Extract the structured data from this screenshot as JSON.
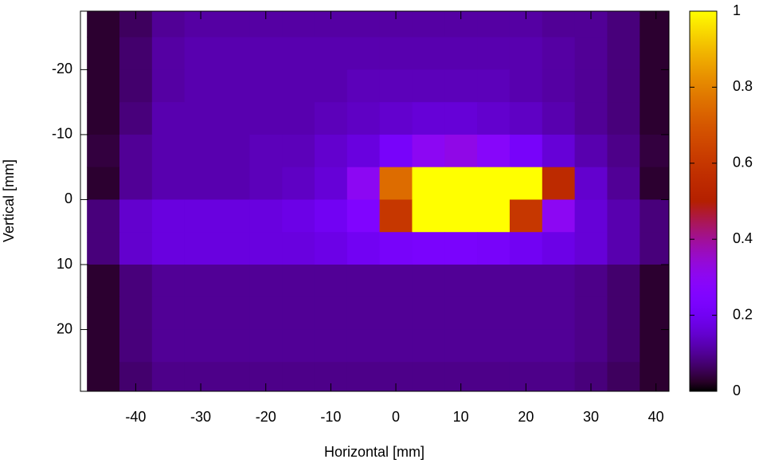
{
  "chart_data": {
    "type": "heatmap",
    "xlabel": "Horizontal [mm]",
    "ylabel": "Vertical [mm]",
    "xlim": [
      -48.5,
      42
    ],
    "xticks": [
      -40,
      -30,
      -20,
      -10,
      0,
      10,
      20,
      30,
      40
    ],
    "ylim": [
      -29,
      29.5
    ],
    "yticks": [
      -20,
      -10,
      0,
      10,
      20
    ],
    "cblim": [
      0,
      1
    ],
    "cbticks": [
      0,
      0.2,
      0.4,
      0.6,
      0.8,
      1
    ],
    "x": [
      -45,
      -40,
      -35,
      -30,
      -25,
      -20,
      -15,
      -10,
      -5,
      0,
      5,
      10,
      15,
      20,
      25,
      30,
      35,
      40
    ],
    "y": [
      -27.5,
      -22.5,
      -17.5,
      -12.5,
      -7.5,
      -2.5,
      2.5,
      7.5,
      12.5,
      17.5,
      22.5,
      27.5
    ],
    "z": [
      [
        0.03,
        0.06,
        0.1,
        0.11,
        0.11,
        0.11,
        0.11,
        0.11,
        0.11,
        0.11,
        0.11,
        0.11,
        0.11,
        0.11,
        0.1,
        0.1,
        0.08,
        0.03
      ],
      [
        0.03,
        0.07,
        0.11,
        0.12,
        0.12,
        0.12,
        0.12,
        0.12,
        0.12,
        0.12,
        0.12,
        0.12,
        0.12,
        0.12,
        0.11,
        0.1,
        0.08,
        0.03
      ],
      [
        0.03,
        0.07,
        0.11,
        0.12,
        0.12,
        0.12,
        0.12,
        0.12,
        0.13,
        0.13,
        0.13,
        0.13,
        0.13,
        0.12,
        0.11,
        0.1,
        0.08,
        0.03
      ],
      [
        0.03,
        0.08,
        0.12,
        0.12,
        0.12,
        0.12,
        0.12,
        0.13,
        0.14,
        0.15,
        0.16,
        0.16,
        0.15,
        0.14,
        0.12,
        0.1,
        0.08,
        0.03
      ],
      [
        0.04,
        0.1,
        0.12,
        0.12,
        0.12,
        0.13,
        0.13,
        0.15,
        0.17,
        0.22,
        0.3,
        0.32,
        0.28,
        0.22,
        0.16,
        0.12,
        0.09,
        0.04
      ],
      [
        0.03,
        0.1,
        0.12,
        0.12,
        0.12,
        0.13,
        0.14,
        0.16,
        0.3,
        0.75,
        1,
        1,
        1,
        1,
        0.55,
        0.15,
        0.1,
        0.03
      ],
      [
        0.08,
        0.15,
        0.17,
        0.17,
        0.17,
        0.17,
        0.18,
        0.2,
        0.25,
        0.6,
        1,
        1,
        1,
        0.6,
        0.3,
        0.16,
        0.12,
        0.08
      ],
      [
        0.08,
        0.15,
        0.17,
        0.17,
        0.17,
        0.17,
        0.17,
        0.18,
        0.2,
        0.22,
        0.23,
        0.23,
        0.22,
        0.2,
        0.18,
        0.16,
        0.12,
        0.08
      ],
      [
        0.03,
        0.08,
        0.1,
        0.1,
        0.1,
        0.1,
        0.1,
        0.1,
        0.1,
        0.1,
        0.1,
        0.1,
        0.1,
        0.1,
        0.1,
        0.09,
        0.07,
        0.03
      ],
      [
        0.03,
        0.08,
        0.1,
        0.1,
        0.1,
        0.1,
        0.1,
        0.1,
        0.1,
        0.1,
        0.1,
        0.1,
        0.1,
        0.1,
        0.1,
        0.09,
        0.07,
        0.03
      ],
      [
        0.03,
        0.08,
        0.1,
        0.1,
        0.1,
        0.1,
        0.1,
        0.1,
        0.1,
        0.1,
        0.1,
        0.1,
        0.1,
        0.1,
        0.1,
        0.09,
        0.07,
        0.03
      ],
      [
        0.03,
        0.07,
        0.09,
        0.09,
        0.09,
        0.09,
        0.09,
        0.09,
        0.09,
        0.09,
        0.09,
        0.09,
        0.09,
        0.09,
        0.09,
        0.08,
        0.06,
        0.03
      ]
    ]
  }
}
